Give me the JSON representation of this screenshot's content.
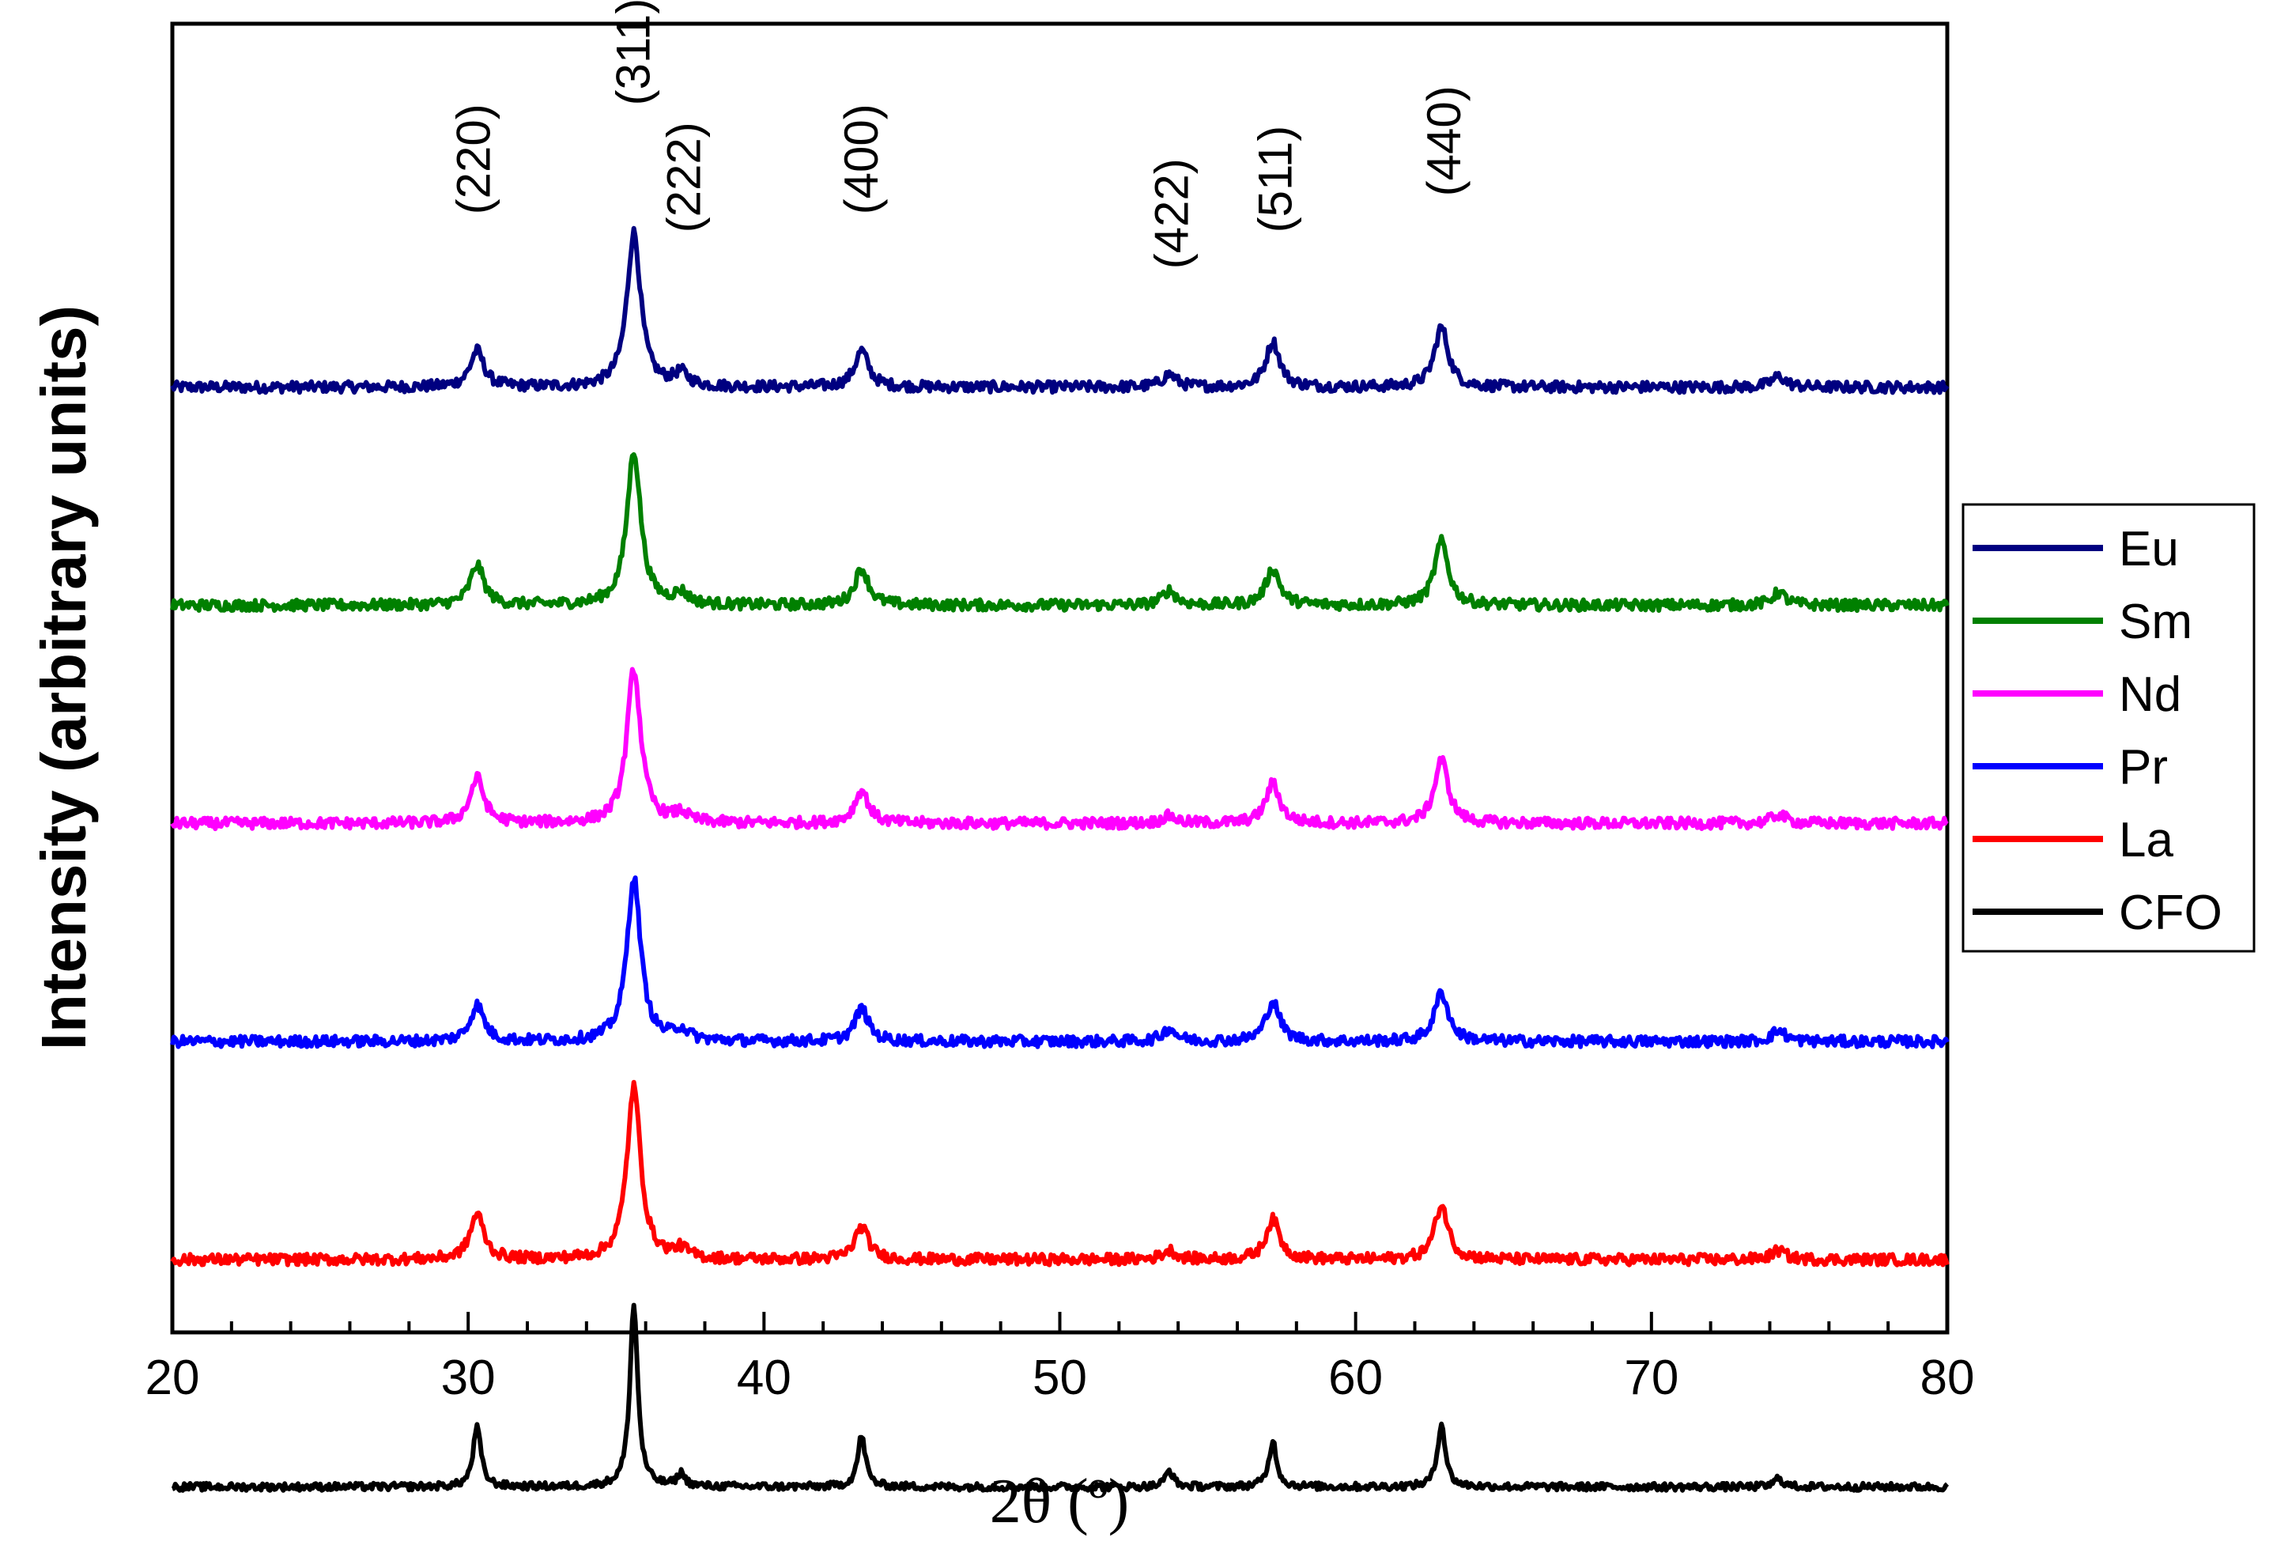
{
  "chart_data": {
    "type": "line",
    "title": "",
    "xlabel": "2θ (º)",
    "ylabel": "Intensity (arbitrary units)",
    "xlim": [
      20,
      80
    ],
    "ylim": [
      0,
      7.2
    ],
    "xticks": [
      "20",
      "30",
      "40",
      "50",
      "60",
      "70",
      "80"
    ],
    "yticks_shown": false,
    "legend_position": "right",
    "peak_labels": [
      {
        "text": "(220)",
        "x": 30.2,
        "y": 6.15
      },
      {
        "text": "(311)",
        "x": 35.6,
        "y": 6.75
      },
      {
        "text": "(222)",
        "x": 37.3,
        "y": 6.05
      },
      {
        "text": "(400)",
        "x": 43.3,
        "y": 6.15
      },
      {
        "text": "(422)",
        "x": 53.8,
        "y": 5.85
      },
      {
        "text": "(511)",
        "x": 57.3,
        "y": 6.05
      },
      {
        "text": "(440)",
        "x": 63.0,
        "y": 6.25
      }
    ],
    "peaks_2theta": [
      30.3,
      35.6,
      37.2,
      43.3,
      53.7,
      57.2,
      62.9,
      74.3
    ],
    "series": [
      {
        "name": "Eu",
        "color": "#000080",
        "offset": 5.2,
        "heights": [
          0.2,
          0.85,
          0.07,
          0.2,
          0.07,
          0.25,
          0.33,
          0.06
        ],
        "noise": 0.03
      },
      {
        "name": "Sm",
        "color": "#008000",
        "offset": 4.0,
        "heights": [
          0.22,
          0.85,
          0.06,
          0.2,
          0.08,
          0.2,
          0.35,
          0.07
        ],
        "noise": 0.03
      },
      {
        "name": "Nd",
        "color": "#FF00FF",
        "offset": 2.8,
        "heights": [
          0.25,
          0.85,
          0.05,
          0.18,
          0.04,
          0.22,
          0.35,
          0.05
        ],
        "noise": 0.03
      },
      {
        "name": "Pr",
        "color": "#0000FF",
        "offset": 1.6,
        "heights": [
          0.2,
          0.9,
          0.06,
          0.18,
          0.07,
          0.22,
          0.27,
          0.06
        ],
        "noise": 0.03
      },
      {
        "name": "La",
        "color": "#FF0000",
        "offset": 0.4,
        "heights": [
          0.25,
          0.95,
          0.05,
          0.18,
          0.05,
          0.22,
          0.3,
          0.05
        ],
        "noise": 0.03
      },
      {
        "name": "CFO",
        "color": "#000000",
        "offset": -0.85,
        "heights": [
          0.33,
          1.0,
          0.07,
          0.28,
          0.09,
          0.25,
          0.35,
          0.05
        ],
        "noise": 0.02
      }
    ]
  }
}
